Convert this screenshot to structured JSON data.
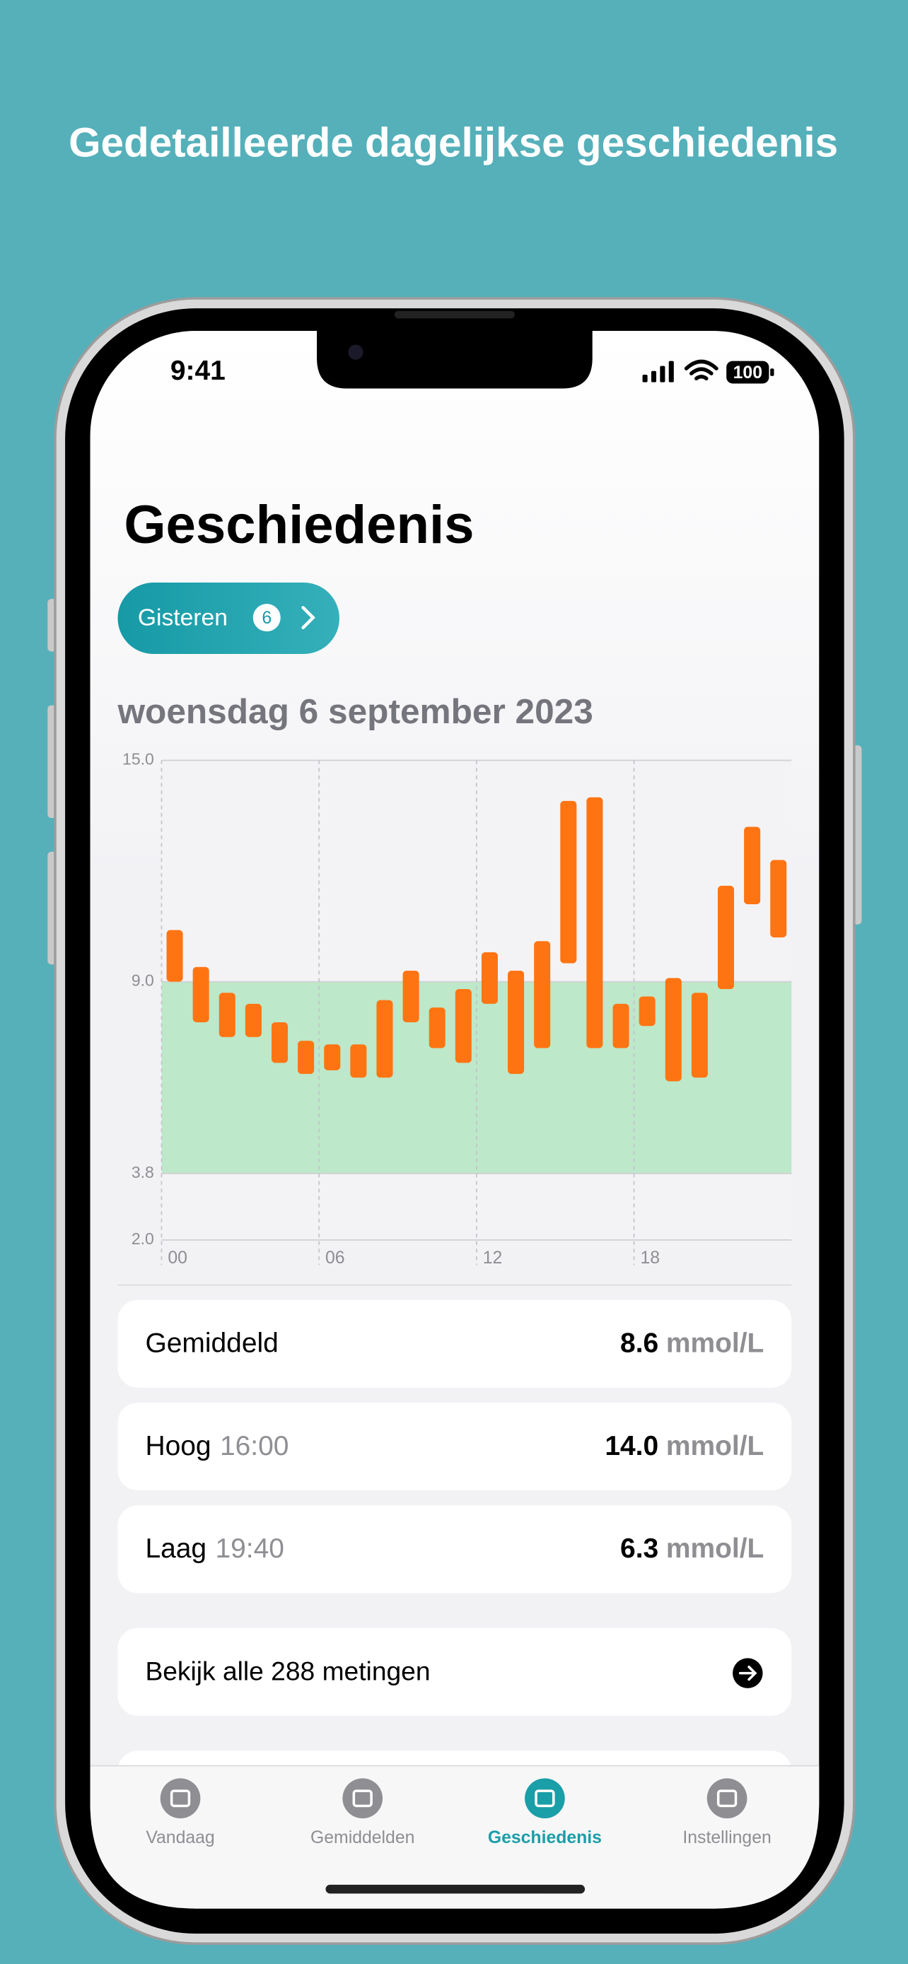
{
  "headline": "Gedetailleerde dagelijkse geschiedenis",
  "status": {
    "time": "9:41",
    "battery": "100"
  },
  "title": "Geschiedenis",
  "nav_button": {
    "label": "Gisteren",
    "badge": "6"
  },
  "date": "woensdag 6 september 2023",
  "chart": {
    "type": "range-bar",
    "color": "#ff7412",
    "target_color": "#bde8c9",
    "target_range": [
      3.8,
      9.0
    ],
    "xlim": [
      0,
      24
    ],
    "xticks": [
      {
        "value": 0,
        "label": "00"
      },
      {
        "value": 6,
        "label": "06"
      },
      {
        "value": 12,
        "label": "12"
      },
      {
        "value": 18,
        "label": "18"
      }
    ],
    "ylim": [
      2,
      15
    ],
    "yticks": [
      {
        "value": 2,
        "label": "2.0"
      },
      3.8,
      {
        "value": 9,
        "label": "9.0"
      },
      {
        "value": 15,
        "label": "15.0"
      }
    ],
    "x": [
      0.5,
      1.5,
      2.5,
      3.5,
      4.5,
      5.5,
      6.5,
      7.5,
      8.5,
      9.5,
      10.5,
      11.5,
      12.5,
      13.5,
      14.5,
      15.5,
      16.5,
      17.5,
      18.5,
      19.5,
      20.5,
      21.5,
      22.5,
      23.5
    ],
    "low": [
      9.0,
      7.9,
      7.5,
      7.5,
      6.8,
      6.5,
      6.6,
      6.4,
      6.4,
      7.9,
      7.2,
      6.8,
      8.4,
      6.5,
      7.2,
      9.5,
      7.2,
      7.2,
      7.8,
      6.3,
      6.4,
      8.8,
      11.1,
      10.2
    ],
    "high": [
      10.4,
      9.4,
      8.7,
      8.4,
      7.9,
      7.4,
      7.3,
      7.3,
      8.5,
      9.3,
      8.3,
      8.8,
      9.8,
      9.3,
      10.1,
      13.9,
      14.0,
      8.4,
      8.6,
      9.1,
      8.7,
      11.6,
      13.2,
      12.3
    ]
  },
  "stats": [
    {
      "label": "Gemiddeld",
      "value": "8.6",
      "unit": "mmol/L"
    },
    {
      "label": "Hoog",
      "time": "16:00",
      "value": "14.0",
      "unit": "mmol/L"
    },
    {
      "label": "Laag",
      "time": "19:40",
      "value": "6.3",
      "unit": "mmol/L"
    }
  ],
  "link": "Bekijk alle 288 metingen",
  "tabs": [
    "Vandaag",
    "Gemiddelden",
    "Geschiedenis",
    "Instellingen"
  ]
}
